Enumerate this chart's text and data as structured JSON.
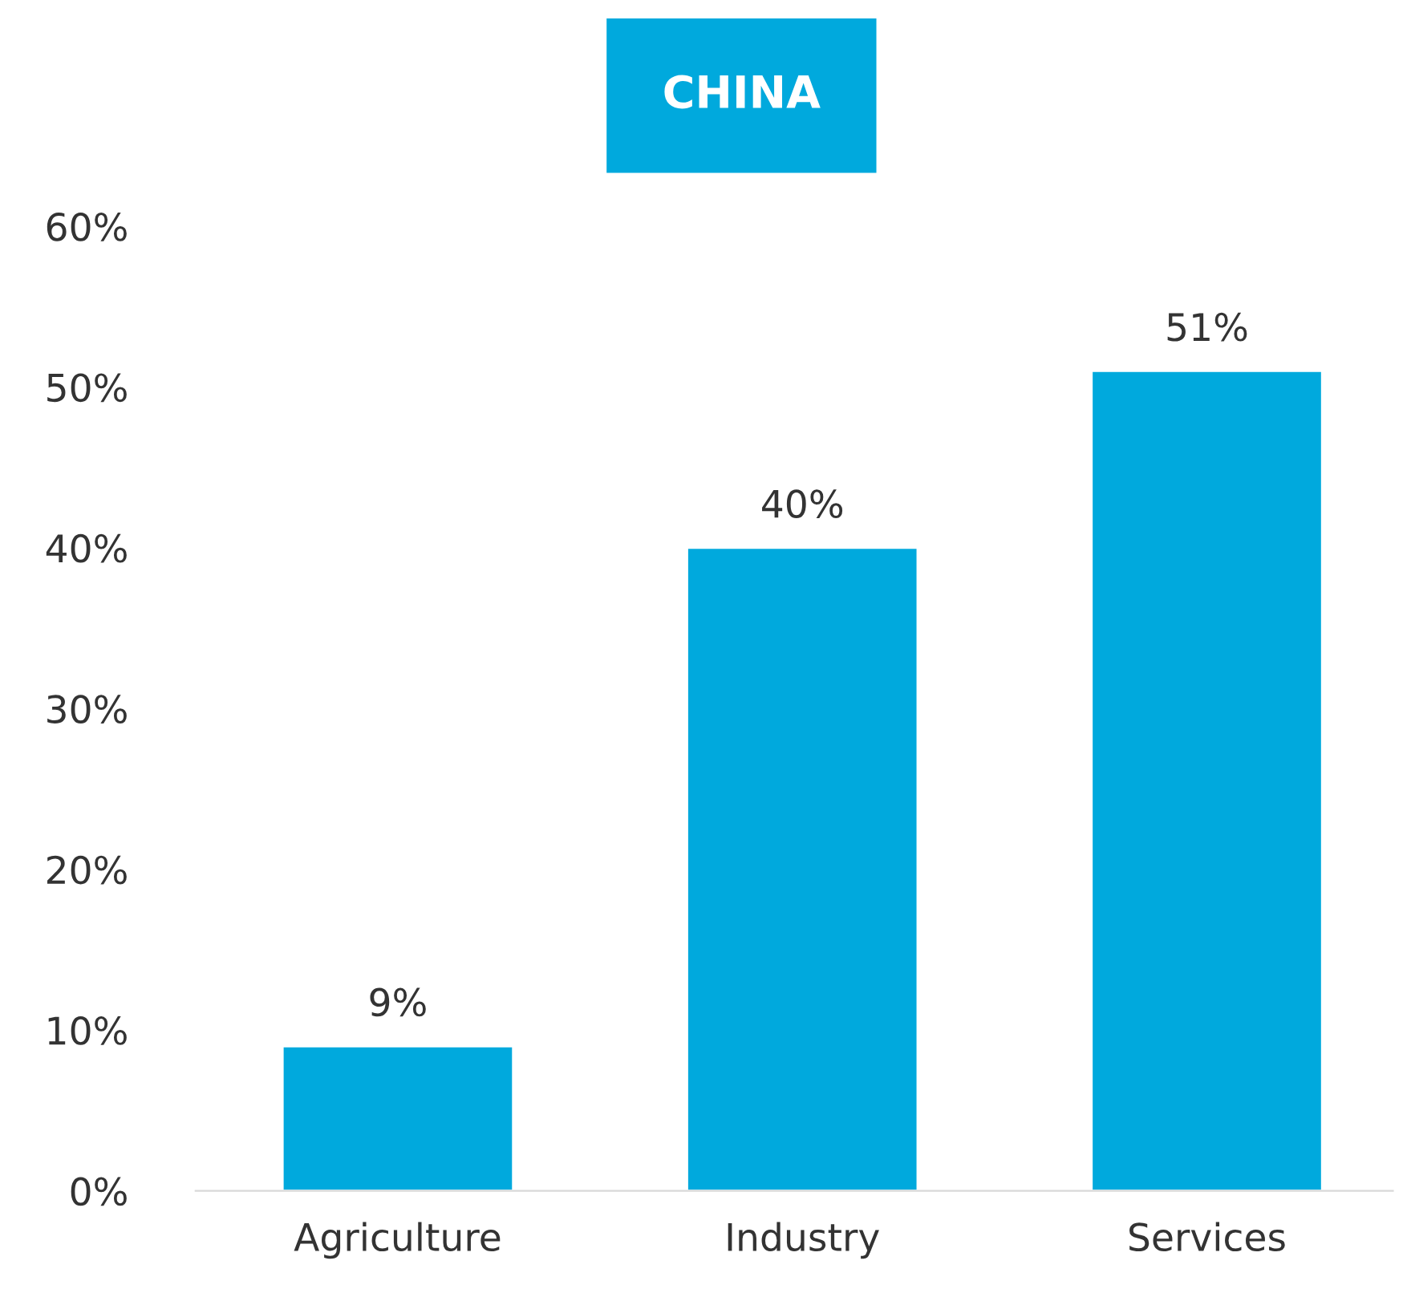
{
  "chart_data": {
    "type": "bar",
    "title": "CHINA",
    "categories": [
      "Agriculture",
      "Industry",
      "Services"
    ],
    "values": [
      9,
      40,
      51
    ],
    "color": "#00a9dd",
    "value_labels": [
      "9%",
      "40%",
      "51%"
    ],
    "ylim": [
      0,
      60
    ],
    "yticks": [
      {
        "value": 0,
        "label": "0%"
      },
      {
        "value": 10,
        "label": "10%"
      },
      {
        "value": 20,
        "label": "20%"
      },
      {
        "value": 30,
        "label": "30%"
      },
      {
        "value": 40,
        "label": "40%"
      },
      {
        "value": 50,
        "label": "50%"
      },
      {
        "value": 60,
        "label": "60%"
      }
    ],
    "grid": false,
    "legend": false
  }
}
